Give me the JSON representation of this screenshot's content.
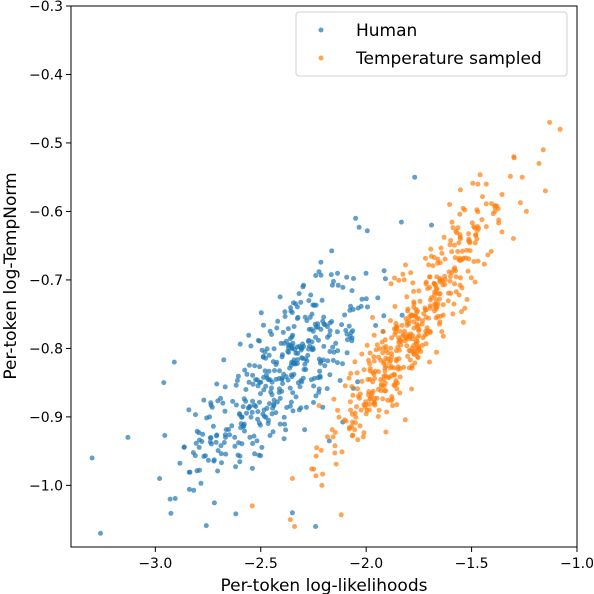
{
  "chart_data": {
    "type": "scatter",
    "title": "",
    "xlabel": "Per-token log-likelihoods",
    "ylabel": "Per-token log-TempNorm",
    "xlim": [
      -3.4,
      -1.0
    ],
    "ylim": [
      -1.09,
      -0.3
    ],
    "x_ticks": [
      -3.0,
      -2.5,
      -2.0,
      -1.5,
      -1.0
    ],
    "y_ticks": [
      -1.0,
      -0.9,
      -0.8,
      -0.7,
      -0.6,
      -0.5,
      -0.4,
      -0.3
    ],
    "x_tick_labels": [
      "−3.0",
      "−2.5",
      "−2.0",
      "−1.5",
      "−1.0"
    ],
    "y_tick_labels": [
      "−1.0",
      "−0.9",
      "−0.8",
      "−0.7",
      "−0.6",
      "−0.5",
      "−0.4",
      "−0.3"
    ],
    "grid": false,
    "legend_position": "top-right",
    "series": [
      {
        "name": "Human",
        "color": "#1f77b4",
        "cluster": {
          "count": 400,
          "x_mean": -2.42,
          "x_sd": 0.22,
          "y_slope": 0.27,
          "y_intercept": -0.19,
          "noise_sd": 0.05,
          "x_min": -3.3,
          "x_max": -1.78,
          "seed": 17
        },
        "notable_points": [
          {
            "x": -3.3,
            "y": -0.96
          },
          {
            "x": -3.26,
            "y": -1.07
          },
          {
            "x": -3.13,
            "y": -0.93
          },
          {
            "x": -2.93,
            "y": -1.02
          },
          {
            "x": -2.98,
            "y": -0.99
          },
          {
            "x": -2.96,
            "y": -0.85
          },
          {
            "x": -2.91,
            "y": -0.82
          },
          {
            "x": -2.35,
            "y": -1.04
          },
          {
            "x": -2.24,
            "y": -1.06
          },
          {
            "x": -1.77,
            "y": -0.55
          },
          {
            "x": -1.69,
            "y": -0.62
          },
          {
            "x": -2.05,
            "y": -0.61
          }
        ]
      },
      {
        "name": "Temperature sampled",
        "color": "#ff7f0e",
        "cluster": {
          "count": 450,
          "x_mean": -1.78,
          "x_sd": 0.19,
          "y_slope": 0.42,
          "y_intercept": -0.02,
          "noise_sd": 0.04,
          "x_min": -2.3,
          "x_max": -1.25,
          "seed": 29
        },
        "notable_points": [
          {
            "x": -2.54,
            "y": -1.03
          },
          {
            "x": -2.34,
            "y": -1.06
          },
          {
            "x": -2.36,
            "y": -1.05
          },
          {
            "x": -2.21,
            "y": -1.0
          },
          {
            "x": -2.35,
            "y": -0.99
          },
          {
            "x": -1.08,
            "y": -0.48
          },
          {
            "x": -1.13,
            "y": -0.47
          },
          {
            "x": -1.16,
            "y": -0.51
          },
          {
            "x": -1.18,
            "y": -0.53
          },
          {
            "x": -1.3,
            "y": -0.52
          },
          {
            "x": -1.26,
            "y": -0.55
          },
          {
            "x": -1.15,
            "y": -0.57
          },
          {
            "x": -1.24,
            "y": -0.6
          },
          {
            "x": -1.43,
            "y": -0.56
          },
          {
            "x": -1.47,
            "y": -0.56
          }
        ]
      }
    ]
  }
}
